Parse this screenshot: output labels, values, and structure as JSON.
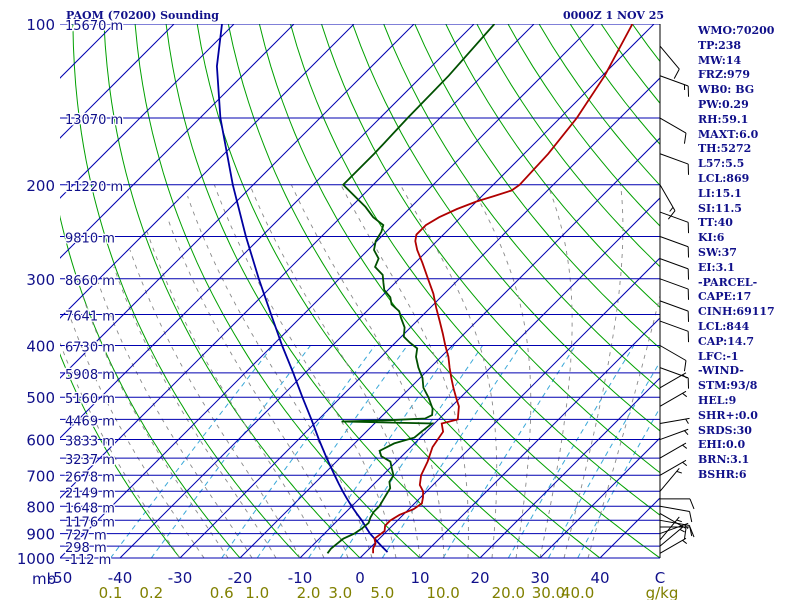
{
  "header": {
    "title": "PAOM (70200) Sounding",
    "datetime": "0000Z  1 NOV 25"
  },
  "indices": [
    "WMO:70200",
    "TP:238",
    "MW:14",
    "FRZ:979",
    "WB0: BG",
    "PW:0.29",
    "RH:59.1",
    "MAXT:6.0",
    "TH:5272",
    "L57:5.5",
    "LCL:869",
    "LI:15.1",
    "SI:11.5",
    "TT:40",
    "KI:6",
    "SW:37",
    "EI:3.1",
    "-PARCEL-",
    "CAPE:17",
    "CINH:69117",
    "LCL:844",
    "CAP:14.7",
    "LFC:-1",
    "-WIND-",
    "STM:93/8",
    "HEL:9",
    "SHR+:0.0",
    "SRDS:30",
    "EHI:0.0",
    "BRN:3.1",
    "BSHR:6"
  ],
  "colors": {
    "isobar": "#0000b0",
    "isotherm": "#0000b0",
    "dry_adiabat": "#00a000",
    "moist_adiabat": "#8a8a8a",
    "mixing_ratio": "#3aa8d8",
    "temperature": "#b00000",
    "dewpoint": "#005000",
    "parcel": "#0000a0",
    "label": "#10108a",
    "mixing_label": "#808000"
  },
  "chart_data": {
    "type": "skew-t",
    "pressure_unit": "mb",
    "temp_unit": "C",
    "mixing_unit": "g/kg",
    "ylim": [
      1000,
      100
    ],
    "xlim": [
      -50,
      50
    ],
    "pressure_ticks": [
      {
        "value": 100,
        "label": "100"
      },
      {
        "value": 200,
        "label": "200"
      },
      {
        "value": 300,
        "label": "300"
      },
      {
        "value": 400,
        "label": "400"
      },
      {
        "value": 500,
        "label": "500"
      },
      {
        "value": 600,
        "label": "600"
      },
      {
        "value": 700,
        "label": "700"
      },
      {
        "value": 800,
        "label": "800"
      },
      {
        "value": 900,
        "label": "900"
      },
      {
        "value": 1000,
        "label": "1000"
      }
    ],
    "temp_ticks": [
      {
        "value": -50,
        "label": "-50"
      },
      {
        "value": -40,
        "label": "-40"
      },
      {
        "value": -30,
        "label": "-30"
      },
      {
        "value": -20,
        "label": "-20"
      },
      {
        "value": -10,
        "label": "-10"
      },
      {
        "value": 0,
        "label": "0"
      },
      {
        "value": 10,
        "label": "10"
      },
      {
        "value": 20,
        "label": "20"
      },
      {
        "value": 30,
        "label": "30"
      },
      {
        "value": 40,
        "label": "40"
      },
      {
        "value": 50,
        "label": "C"
      }
    ],
    "height_levels": [
      {
        "p": 100,
        "label": "15670 m"
      },
      {
        "p": 150,
        "label": "13070 m"
      },
      {
        "p": 200,
        "label": "11220 m"
      },
      {
        "p": 250,
        "label": "9810 m"
      },
      {
        "p": 300,
        "label": "8660 m"
      },
      {
        "p": 350,
        "label": "7641 m"
      },
      {
        "p": 400,
        "label": "6730 m"
      },
      {
        "p": 450,
        "label": "5908 m"
      },
      {
        "p": 500,
        "label": "5160 m"
      },
      {
        "p": 550,
        "label": "4469 m"
      },
      {
        "p": 600,
        "label": "3833 m"
      },
      {
        "p": 650,
        "label": "3237 m"
      },
      {
        "p": 700,
        "label": "2678 m"
      },
      {
        "p": 750,
        "label": "2149 m"
      },
      {
        "p": 800,
        "label": "1648 m"
      },
      {
        "p": 850,
        "label": "1176 m"
      },
      {
        "p": 900,
        "label": "727 m"
      },
      {
        "p": 950,
        "label": "298 m"
      },
      {
        "p": 1000,
        "label": "-112 m"
      }
    ],
    "mixing_ratio_labels": [
      "0.1",
      "0.2",
      "0.6",
      "1.0",
      "2.0",
      "3.0",
      "5.0",
      "10.0",
      "20.0",
      "30.0",
      "40.0"
    ],
    "mixing_ratio_values": [
      0.1,
      0.2,
      0.6,
      1.0,
      2.0,
      3.0,
      5.0,
      10.0,
      20.0,
      30.0,
      40.0
    ],
    "temperature": [
      {
        "p": 980,
        "t": 1.4
      },
      {
        "p": 960,
        "t": 0.6
      },
      {
        "p": 940,
        "t": 0.2
      },
      {
        "p": 920,
        "t": -0.8
      },
      {
        "p": 890,
        "t": -0.4
      },
      {
        "p": 870,
        "t": -1.2
      },
      {
        "p": 850,
        "t": -1.2
      },
      {
        "p": 830,
        "t": -0.6
      },
      {
        "p": 810,
        "t": 0.8
      },
      {
        "p": 790,
        "t": 1.2
      },
      {
        "p": 770,
        "t": 0.4
      },
      {
        "p": 750,
        "t": -0.6
      },
      {
        "p": 730,
        "t": -2.2
      },
      {
        "p": 700,
        "t": -3.6
      },
      {
        "p": 660,
        "t": -4.8
      },
      {
        "p": 620,
        "t": -6.4
      },
      {
        "p": 580,
        "t": -7.2
      },
      {
        "p": 560,
        "t": -8.8
      },
      {
        "p": 550,
        "t": -6.8
      },
      {
        "p": 520,
        "t": -8.8
      },
      {
        "p": 500,
        "t": -10.8
      },
      {
        "p": 480,
        "t": -12.8
      },
      {
        "p": 460,
        "t": -14.8
      },
      {
        "p": 440,
        "t": -16.8
      },
      {
        "p": 420,
        "t": -18.8
      },
      {
        "p": 400,
        "t": -21.2
      },
      {
        "p": 380,
        "t": -23.6
      },
      {
        "p": 360,
        "t": -26.2
      },
      {
        "p": 340,
        "t": -29.0
      },
      {
        "p": 320,
        "t": -31.8
      },
      {
        "p": 300,
        "t": -35.2
      },
      {
        "p": 280,
        "t": -38.8
      },
      {
        "p": 265,
        "t": -41.8
      },
      {
        "p": 255,
        "t": -43.6
      },
      {
        "p": 248,
        "t": -44.5
      },
      {
        "p": 238,
        "t": -44.5
      },
      {
        "p": 230,
        "t": -43.6
      },
      {
        "p": 222,
        "t": -42.0
      },
      {
        "p": 215,
        "t": -40.0
      },
      {
        "p": 210,
        "t": -38.0
      },
      {
        "p": 205,
        "t": -36.0
      },
      {
        "p": 200,
        "t": -35.6
      },
      {
        "p": 175,
        "t": -36.0
      },
      {
        "p": 150,
        "t": -37.2
      },
      {
        "p": 125,
        "t": -39.6
      },
      {
        "p": 100,
        "t": -43.6
      }
    ],
    "dewpoint": [
      {
        "p": 980,
        "t": -6.2
      },
      {
        "p": 960,
        "t": -6.4
      },
      {
        "p": 940,
        "t": -6.2
      },
      {
        "p": 920,
        "t": -6.0
      },
      {
        "p": 900,
        "t": -5.0
      },
      {
        "p": 880,
        "t": -4.6
      },
      {
        "p": 860,
        "t": -4.4
      },
      {
        "p": 840,
        "t": -5.0
      },
      {
        "p": 820,
        "t": -5.4
      },
      {
        "p": 800,
        "t": -5.4
      },
      {
        "p": 780,
        "t": -5.8
      },
      {
        "p": 760,
        "t": -6.2
      },
      {
        "p": 740,
        "t": -6.6
      },
      {
        "p": 720,
        "t": -7.8
      },
      {
        "p": 700,
        "t": -8.2
      },
      {
        "p": 680,
        "t": -9.6
      },
      {
        "p": 660,
        "t": -11.0
      },
      {
        "p": 645,
        "t": -13.4
      },
      {
        "p": 630,
        "t": -14.6
      },
      {
        "p": 610,
        "t": -13.4
      },
      {
        "p": 595,
        "t": -11.0
      },
      {
        "p": 580,
        "t": -10.8
      },
      {
        "p": 560,
        "t": -10.4
      },
      {
        "p": 555,
        "t": -25.8
      },
      {
        "p": 552,
        "t": -18.0
      },
      {
        "p": 548,
        "t": -12.4
      },
      {
        "p": 540,
        "t": -11.8
      },
      {
        "p": 525,
        "t": -12.8
      },
      {
        "p": 500,
        "t": -15.4
      },
      {
        "p": 480,
        "t": -17.8
      },
      {
        "p": 460,
        "t": -19.6
      },
      {
        "p": 440,
        "t": -22.0
      },
      {
        "p": 420,
        "t": -24.2
      },
      {
        "p": 405,
        "t": -25.4
      },
      {
        "p": 395,
        "t": -27.6
      },
      {
        "p": 385,
        "t": -29.6
      },
      {
        "p": 370,
        "t": -31.0
      },
      {
        "p": 355,
        "t": -33.2
      },
      {
        "p": 345,
        "t": -34.6
      },
      {
        "p": 335,
        "t": -37.0
      },
      {
        "p": 325,
        "t": -38.4
      },
      {
        "p": 315,
        "t": -40.6
      },
      {
        "p": 305,
        "t": -42.0
      },
      {
        "p": 295,
        "t": -43.4
      },
      {
        "p": 285,
        "t": -46.0
      },
      {
        "p": 275,
        "t": -46.8
      },
      {
        "p": 265,
        "t": -49.0
      },
      {
        "p": 255,
        "t": -50.2
      },
      {
        "p": 245,
        "t": -50.8
      },
      {
        "p": 238,
        "t": -51.6
      },
      {
        "p": 230,
        "t": -54.6
      },
      {
        "p": 220,
        "t": -57.6
      },
      {
        "p": 200,
        "t": -65.0
      },
      {
        "p": 175,
        "t": -65.0
      },
      {
        "p": 150,
        "t": -65.4
      },
      {
        "p": 125,
        "t": -65.6
      },
      {
        "p": 100,
        "t": -66.6
      }
    ],
    "parcel": [
      {
        "p": 975,
        "t": 3.6
      },
      {
        "p": 950,
        "t": 1.6
      },
      {
        "p": 925,
        "t": -0.4
      },
      {
        "p": 900,
        "t": -2.4
      },
      {
        "p": 875,
        "t": -4.2
      },
      {
        "p": 850,
        "t": -6.0
      },
      {
        "p": 825,
        "t": -8.0
      },
      {
        "p": 800,
        "t": -10.0
      },
      {
        "p": 775,
        "t": -12.0
      },
      {
        "p": 750,
        "t": -14.0
      },
      {
        "p": 725,
        "t": -16.0
      },
      {
        "p": 700,
        "t": -18.0
      },
      {
        "p": 650,
        "t": -22.2
      },
      {
        "p": 600,
        "t": -26.6
      },
      {
        "p": 550,
        "t": -31.2
      },
      {
        "p": 500,
        "t": -36.4
      },
      {
        "p": 450,
        "t": -42.0
      },
      {
        "p": 400,
        "t": -48.4
      },
      {
        "p": 350,
        "t": -55.4
      },
      {
        "p": 300,
        "t": -63.4
      },
      {
        "p": 250,
        "t": -72.6
      },
      {
        "p": 200,
        "t": -83.4
      },
      {
        "p": 150,
        "t": -96.6
      },
      {
        "p": 120,
        "t": -105.8
      },
      {
        "p": 100,
        "t": -112.0
      }
    ],
    "wind_barbs": [
      {
        "p": 980,
        "dir": 60,
        "spd": 5
      },
      {
        "p": 950,
        "dir": 50,
        "spd": 5
      },
      {
        "p": 925,
        "dir": 40,
        "spd": 5
      },
      {
        "p": 900,
        "dir": 70,
        "spd": 5
      },
      {
        "p": 875,
        "dir": 90,
        "spd": 10
      },
      {
        "p": 850,
        "dir": 100,
        "spd": 10
      },
      {
        "p": 825,
        "dir": 120,
        "spd": 10
      },
      {
        "p": 800,
        "dir": 100,
        "spd": 10
      },
      {
        "p": 775,
        "dir": 90,
        "spd": 10
      },
      {
        "p": 750,
        "dir": 40,
        "spd": 5
      },
      {
        "p": 700,
        "dir": 60,
        "spd": 5
      },
      {
        "p": 650,
        "dir": 60,
        "spd": 5
      },
      {
        "p": 600,
        "dir": 70,
        "spd": 5
      },
      {
        "p": 560,
        "dir": 80,
        "spd": 5
      },
      {
        "p": 520,
        "dir": 60,
        "spd": 5
      },
      {
        "p": 480,
        "dir": 60,
        "spd": 5
      },
      {
        "p": 440,
        "dir": 110,
        "spd": 10
      },
      {
        "p": 400,
        "dir": 120,
        "spd": 10
      },
      {
        "p": 360,
        "dir": 110,
        "spd": 10
      },
      {
        "p": 330,
        "dir": 110,
        "spd": 10
      },
      {
        "p": 300,
        "dir": 110,
        "spd": 10
      },
      {
        "p": 275,
        "dir": 110,
        "spd": 10
      },
      {
        "p": 250,
        "dir": 110,
        "spd": 10
      },
      {
        "p": 225,
        "dir": 110,
        "spd": 10
      },
      {
        "p": 200,
        "dir": 150,
        "spd": 15
      },
      {
        "p": 175,
        "dir": 110,
        "spd": 10
      },
      {
        "p": 150,
        "dir": 120,
        "spd": 10
      },
      {
        "p": 125,
        "dir": 110,
        "spd": 15
      },
      {
        "p": 110,
        "dir": 140,
        "spd": 10
      }
    ]
  }
}
